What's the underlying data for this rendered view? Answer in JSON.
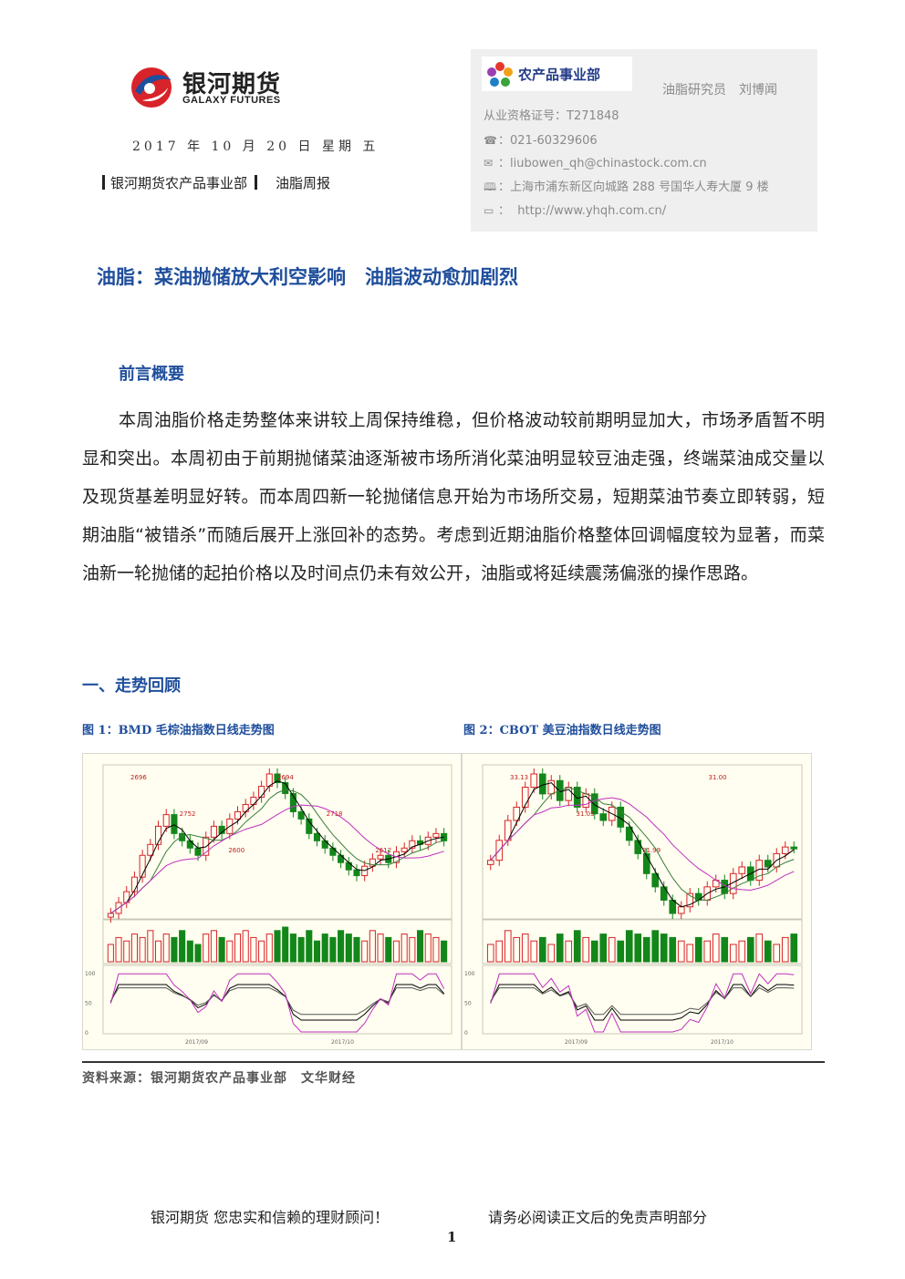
{
  "header": {
    "logo_cn": "银河期货",
    "logo_en": "GALAXY FUTURES",
    "date": "2017 年 10 月 20 日 星期 五",
    "department": "银河期货农产品事业部",
    "report_type": "油脂周报"
  },
  "contact": {
    "dept_logo_text": "农产品事业部",
    "role": "油脂研究员",
    "name": "刘博闻",
    "license": "从业资格证号：T271848",
    "phone": "：021-60329606",
    "email": "：liubowen_qh@chinastock.com.cn",
    "address": "：上海市浦东新区向城路 288 号国华人寿大厦 9 楼",
    "website": "http://www.yhqh.com.cn/",
    "website_prefix": "："
  },
  "title": "油脂：菜油抛储放大利空影响　油脂波动愈加剧烈",
  "intro": {
    "heading": "前言概要",
    "body": "本周油脂价格走势整体来讲较上周保持维稳，但价格波动较前期明显加大，市场矛盾暂不明显和突出。本周初由于前期抛储菜油逐渐被市场所消化菜油明显较豆油走强，终端菜油成交量以及现货基差明显好转。而本周四新一轮抛储信息开始为市场所交易，短期菜油节奏立即转弱，短期油脂“被错杀”而随后展开上涨回补的态势。考虑到近期油脂价格整体回调幅度较为显著，而菜油新一轮抛储的起拍价格以及时间点仍未有效公开，油脂或将延续震荡偏涨的操作思路。"
  },
  "section": {
    "heading": "一、走势回顾"
  },
  "figures": [
    {
      "caption": "图 1：BMD 毛棕油指数日线走势图"
    },
    {
      "caption": "图 2：CBOT 美豆油指数日线走势图"
    }
  ],
  "chart_data": [
    {
      "type": "candlestick",
      "price_labels": [
        "2696",
        "2752",
        "2600",
        "2694",
        "2718",
        "2612"
      ],
      "x_tick_labels": [
        "2017/09",
        "2017/10"
      ],
      "up_color": "#d8232a",
      "down_color": "#13861a",
      "ma_colors": [
        "#000000",
        "#3a7d3a",
        "#c030c0"
      ],
      "closes": [
        2560,
        2575,
        2590,
        2610,
        2640,
        2655,
        2680,
        2696,
        2670,
        2660,
        2650,
        2640,
        2665,
        2680,
        2670,
        2690,
        2700,
        2710,
        2720,
        2735,
        2752,
        2740,
        2725,
        2700,
        2690,
        2670,
        2660,
        2650,
        2640,
        2630,
        2620,
        2612,
        2625,
        2635,
        2640,
        2630,
        2645,
        2650,
        2660,
        2655,
        2665,
        2670,
        2660
      ],
      "volume_relative": [
        0.5,
        0.7,
        0.6,
        0.8,
        0.7,
        0.9,
        0.6,
        0.8,
        0.7,
        0.9,
        0.6,
        0.5,
        0.8,
        0.9,
        0.7,
        0.6,
        0.8,
        0.9,
        0.7,
        0.6,
        0.8,
        0.9,
        1.0,
        0.8,
        0.7,
        0.9,
        0.6,
        0.8,
        0.7,
        0.9,
        0.8,
        0.7,
        0.6,
        0.9,
        0.8,
        0.7,
        0.6,
        0.8,
        0.7,
        0.9,
        0.8,
        0.7,
        0.6
      ],
      "kdj_y_ticks": [
        "100",
        "50",
        "0"
      ]
    },
    {
      "type": "candlestick",
      "price_labels": [
        "33.13",
        "31.03",
        "31.99",
        "31.00"
      ],
      "x_tick_labels": [
        "2017/09",
        "2017/10"
      ],
      "up_color": "#d8232a",
      "down_color": "#13861a",
      "ma_colors": [
        "#000000",
        "#3a7d3a",
        "#c030c0"
      ],
      "closes": [
        31.8,
        32.1,
        32.4,
        32.6,
        32.9,
        33.1,
        32.8,
        33.0,
        32.7,
        32.9,
        32.6,
        32.8,
        32.5,
        32.4,
        32.6,
        32.3,
        32.1,
        31.9,
        31.6,
        31.4,
        31.2,
        31.0,
        31.1,
        31.3,
        31.2,
        31.4,
        31.5,
        31.3,
        31.6,
        31.7,
        31.5,
        31.8,
        31.7,
        31.9,
        32.0,
        31.99
      ],
      "volume_relative": [
        0.5,
        0.6,
        0.9,
        0.7,
        0.8,
        0.6,
        0.7,
        0.5,
        0.8,
        0.6,
        0.9,
        0.7,
        0.6,
        0.8,
        0.7,
        0.6,
        0.9,
        0.8,
        0.7,
        0.9,
        0.8,
        0.7,
        0.6,
        0.5,
        0.7,
        0.6,
        0.8,
        0.7,
        0.5,
        0.6,
        0.7,
        0.8,
        0.6,
        0.5,
        0.7,
        0.8
      ],
      "kdj_y_ticks": [
        "100",
        "50",
        "0"
      ]
    }
  ],
  "source": "资料来源：银河期货农产品事业部　文华财经",
  "footer": {
    "left": "银河期货  您忠实和信赖的理财顾问！",
    "right": "请务必阅读正文后的免责声明部分",
    "page": "1"
  }
}
